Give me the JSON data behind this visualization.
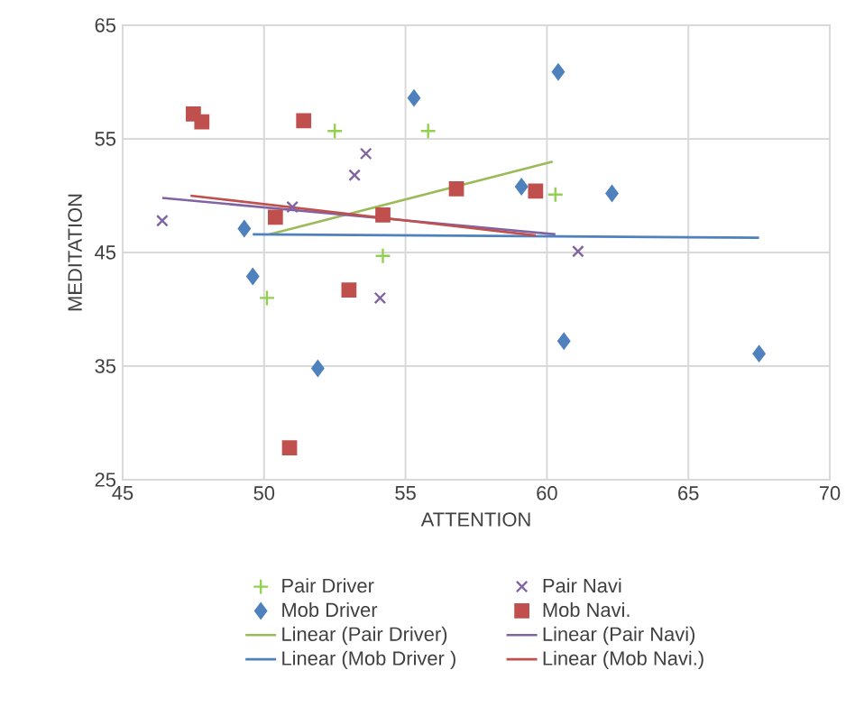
{
  "chart_data": {
    "type": "scatter",
    "xlabel": "ATTENTION",
    "ylabel": "MEDITATION",
    "xlim": [
      45,
      70
    ],
    "ylim": [
      25,
      65
    ],
    "xticks": [
      45,
      50,
      55,
      60,
      65,
      70
    ],
    "yticks": [
      25,
      35,
      45,
      55,
      65
    ],
    "grid": true,
    "legend": "bottom",
    "series": [
      {
        "name": "Pair Driver",
        "color": "#92d050",
        "marker": "plus",
        "x": [
          52.5,
          55.8,
          54.2,
          50.1,
          60.3
        ],
        "values": [
          55.7,
          55.7,
          44.7,
          41.0,
          50.1
        ]
      },
      {
        "name": "Pair Navi",
        "color": "#8064a2",
        "marker": "cross",
        "x": [
          46.4,
          51.0,
          53.6,
          53.2,
          54.1,
          61.1
        ],
        "values": [
          47.8,
          49.0,
          53.7,
          51.8,
          41.0,
          45.1
        ]
      },
      {
        "name": "Mob Driver",
        "color": "#4f81bd",
        "marker": "diamond",
        "x": [
          55.3,
          49.3,
          49.6,
          51.9,
          60.4,
          59.1,
          62.3,
          60.6,
          67.5
        ],
        "values": [
          58.6,
          47.1,
          42.9,
          34.8,
          60.9,
          50.8,
          50.2,
          37.2,
          36.1
        ]
      },
      {
        "name": "Mob Navi.",
        "color": "#c0504d",
        "marker": "square",
        "x": [
          47.5,
          47.8,
          51.4,
          50.4,
          54.2,
          53.0,
          50.9,
          56.8,
          59.6
        ],
        "values": [
          57.2,
          56.5,
          56.6,
          48.1,
          48.3,
          41.7,
          27.8,
          50.6,
          50.4
        ]
      },
      {
        "name": "Linear (Pair Driver)",
        "type": "line",
        "color": "#9bbb59",
        "marker": "none",
        "line_style": "solid",
        "x": [
          50.2,
          60.2
        ],
        "values": [
          46.6,
          53.0
        ]
      },
      {
        "name": "Linear (Pair Navi)",
        "type": "line",
        "color": "#8064a2",
        "marker": "none",
        "line_style": "solid",
        "x": [
          46.4,
          60.3
        ],
        "values": [
          49.8,
          46.6
        ]
      },
      {
        "name": "Linear (Mob Driver )",
        "type": "line",
        "color": "#4f81bd",
        "marker": "none",
        "line_style": "solid",
        "x": [
          49.6,
          67.5
        ],
        "values": [
          46.6,
          46.3
        ]
      },
      {
        "name": "Linear (Mob Navi.)",
        "type": "line",
        "color": "#c0504d",
        "marker": "none",
        "line_style": "solid",
        "x": [
          47.4,
          59.6
        ],
        "values": [
          50.0,
          46.5
        ]
      }
    ]
  }
}
